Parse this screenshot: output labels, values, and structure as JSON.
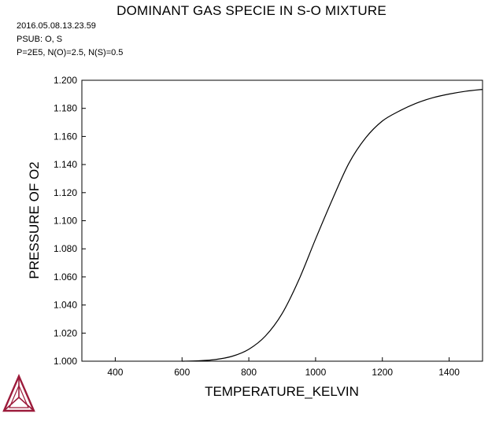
{
  "header": {
    "title": "DOMINANT GAS SPECIE IN S-O MIXTURE",
    "timestamp": "2016.05.08.13.23.59",
    "psub": "PSUB: O, S",
    "conditions": "P=2E5, N(O)=2.5, N(S)=0.5"
  },
  "chart_data": {
    "type": "line",
    "title": "DOMINANT GAS SPECIE IN S-O MIXTURE",
    "xlabel": "TEMPERATURE_KELVIN",
    "ylabel": "PRESSURE OF O2",
    "xlim": [
      300,
      1500
    ],
    "ylim": [
      1.0,
      1.2
    ],
    "x_ticks": [
      400,
      600,
      800,
      1000,
      1200,
      1400
    ],
    "y_ticks": [
      1.0,
      1.02,
      1.04,
      1.06,
      1.08,
      1.1,
      1.12,
      1.14,
      1.16,
      1.18,
      1.2
    ],
    "x_tick_labels": [
      "400",
      "600",
      "800",
      "1000",
      "1200",
      "1400"
    ],
    "y_tick_labels": [
      "1.000",
      "1.020",
      "1.040",
      "1.060",
      "1.080",
      "1.100",
      "1.120",
      "1.140",
      "1.160",
      "1.180",
      "1.200"
    ],
    "grid": false,
    "series": [
      {
        "color": "#000000",
        "x": [
          600,
          650,
          700,
          750,
          800,
          850,
          900,
          950,
          1000,
          1050,
          1100,
          1150,
          1200,
          1250,
          1300,
          1350,
          1400,
          1450,
          1500
        ],
        "y": [
          1.0,
          1.0003,
          1.0012,
          1.0035,
          1.0085,
          1.018,
          1.034,
          1.058,
          1.087,
          1.115,
          1.141,
          1.159,
          1.171,
          1.178,
          1.1835,
          1.1875,
          1.1902,
          1.1922,
          1.1935
        ]
      }
    ]
  },
  "logo": {
    "name": "thermo-calc-logo",
    "color": "#9c1b3b"
  }
}
